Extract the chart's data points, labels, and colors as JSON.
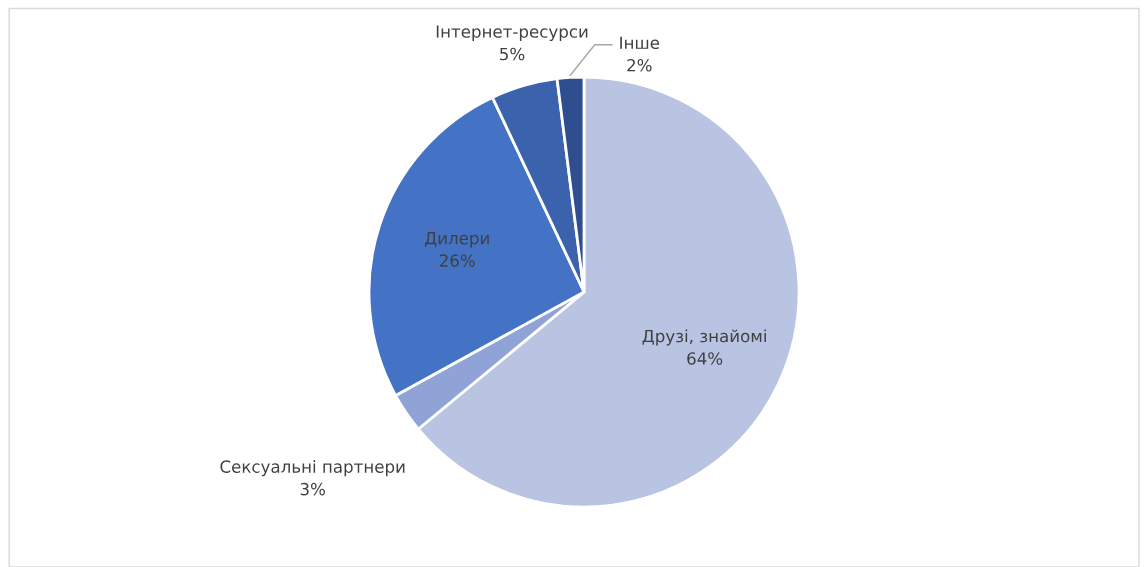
{
  "chart_data": {
    "type": "pie",
    "categories": [
      "Друзі, знайомі",
      "Сексуальні партнери",
      "Дилери",
      "Інтернет-ресурси",
      "Інше"
    ],
    "values": [
      64,
      3,
      26,
      5,
      2
    ],
    "colors": [
      "#b9c3e2",
      "#8fa3d6",
      "#4472c4",
      "#3a62ad",
      "#2f4e8f"
    ],
    "value_labels": [
      "64%",
      "3%",
      "26%",
      "5%",
      "2%"
    ],
    "legend": false
  }
}
